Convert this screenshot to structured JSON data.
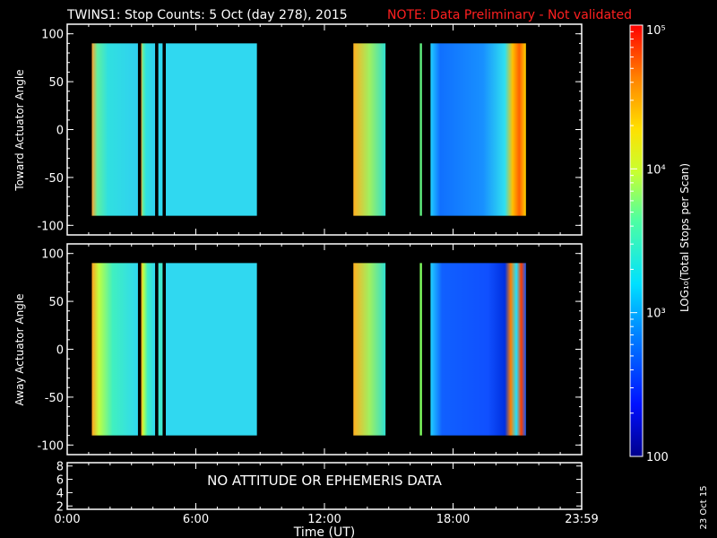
{
  "header": {
    "title": "TWINS1: Stop Counts:  5 Oct (day 278), 2015",
    "note": "NOTE: Data Preliminary - Not validated"
  },
  "footer": {
    "xlabel": "Time (UT)",
    "date_stamp": "23 Oct 15"
  },
  "colorbar": {
    "label": "LOG₁₀(Total Stops per Scan)",
    "ticks": [
      "10⁵",
      "10⁴",
      "10³",
      "100"
    ],
    "tick_values": [
      100000,
      10000,
      1000,
      100
    ],
    "range": [
      100,
      100000
    ],
    "scale": "log"
  },
  "colors": {
    "background": "#000000",
    "frame": "#ffffff",
    "note": "#ff2020",
    "gap": "#000000"
  },
  "chart_data": [
    {
      "type": "heatmap",
      "panel": "top",
      "ylabel": "Toward Actuator Angle",
      "xlim": [
        0,
        24
      ],
      "ylim": [
        -110,
        110
      ],
      "y_data_range": [
        -90,
        90
      ],
      "yticks": [
        100,
        50,
        0,
        -50,
        -100
      ],
      "xticks": [
        0,
        6,
        12,
        18,
        24
      ],
      "xtick_labels": [
        "0:00",
        "6:00",
        "12:00",
        "18:00",
        "23:59"
      ],
      "data_intervals": [
        {
          "start": 1.15,
          "end": 3.3,
          "level": "mid-low"
        },
        {
          "start": 3.45,
          "end": 4.1,
          "level": "mid-low"
        },
        {
          "start": 4.25,
          "end": 4.45,
          "level": "mid-low"
        },
        {
          "start": 4.6,
          "end": 8.85,
          "level": "mid-low"
        },
        {
          "start": 13.35,
          "end": 14.85,
          "level": "mid-high"
        },
        {
          "start": 16.45,
          "end": 16.55,
          "level": "mid"
        },
        {
          "start": 16.95,
          "end": 21.4,
          "level": "low"
        }
      ]
    },
    {
      "type": "heatmap",
      "panel": "middle",
      "ylabel": "Away Actuator Angle",
      "xlim": [
        0,
        24
      ],
      "ylim": [
        -110,
        110
      ],
      "y_data_range": [
        -90,
        90
      ],
      "yticks": [
        100,
        50,
        0,
        -50,
        -100
      ],
      "xticks": [
        0,
        6,
        12,
        18,
        24
      ],
      "xtick_labels": [
        "0:00",
        "6:00",
        "12:00",
        "18:00",
        "23:59"
      ],
      "data_intervals": [
        {
          "start": 1.15,
          "end": 3.3,
          "level": "mid"
        },
        {
          "start": 3.45,
          "end": 4.1,
          "level": "mid"
        },
        {
          "start": 4.25,
          "end": 4.45,
          "level": "mid"
        },
        {
          "start": 4.6,
          "end": 8.85,
          "level": "mid-low"
        },
        {
          "start": 13.35,
          "end": 14.85,
          "level": "mid-high"
        },
        {
          "start": 16.45,
          "end": 16.55,
          "level": "mid"
        },
        {
          "start": 16.95,
          "end": 21.4,
          "level": "low"
        }
      ]
    },
    {
      "type": "line",
      "panel": "bottom",
      "ylim": [
        1.5,
        8.5
      ],
      "yticks": [
        8,
        6,
        4,
        2
      ],
      "xlim": [
        0,
        24
      ],
      "xticks": [
        0,
        6,
        12,
        18,
        24
      ],
      "xtick_labels": [
        "0:00",
        "6:00",
        "12:00",
        "18:00",
        "23:59"
      ],
      "message": "NO ATTITUDE OR EPHEMERIS DATA",
      "series": []
    }
  ]
}
